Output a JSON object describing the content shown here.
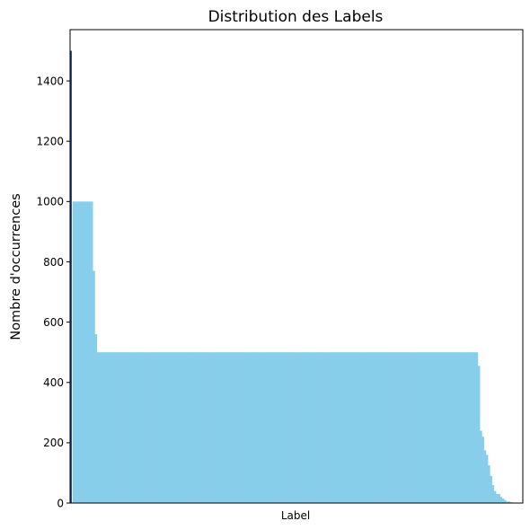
{
  "chart_data": {
    "type": "bar",
    "title": "Distribution des Labels",
    "xlabel": "Label",
    "ylabel": "Nombre d'occurrences",
    "ylim": [
      0,
      1570
    ],
    "yticks": [
      0,
      200,
      400,
      600,
      800,
      1000,
      1200,
      1400
    ],
    "grid": false,
    "legend": "none",
    "bar_color": "#87CEEB",
    "category_count": 217,
    "values": [
      1500,
      1000,
      1000,
      1000,
      1000,
      1000,
      1000,
      1000,
      1000,
      1000,
      1000,
      770,
      560,
      500,
      500,
      500,
      500,
      500,
      500,
      500,
      500,
      500,
      500,
      500,
      500,
      500,
      500,
      500,
      500,
      500,
      500,
      500,
      500,
      500,
      500,
      500,
      500,
      500,
      500,
      500,
      500,
      500,
      500,
      500,
      500,
      500,
      500,
      500,
      500,
      500,
      500,
      500,
      500,
      500,
      500,
      500,
      500,
      500,
      500,
      500,
      500,
      500,
      500,
      500,
      500,
      500,
      500,
      500,
      500,
      500,
      500,
      500,
      500,
      500,
      500,
      500,
      500,
      500,
      500,
      500,
      500,
      500,
      500,
      500,
      500,
      500,
      500,
      500,
      500,
      500,
      500,
      500,
      500,
      500,
      500,
      500,
      500,
      500,
      500,
      500,
      500,
      500,
      500,
      500,
      500,
      500,
      500,
      500,
      500,
      500,
      500,
      500,
      500,
      500,
      500,
      500,
      500,
      500,
      500,
      500,
      500,
      500,
      500,
      500,
      500,
      500,
      500,
      500,
      500,
      500,
      500,
      500,
      500,
      500,
      500,
      500,
      500,
      500,
      500,
      500,
      500,
      500,
      500,
      500,
      500,
      500,
      500,
      500,
      500,
      500,
      500,
      500,
      500,
      500,
      500,
      500,
      500,
      500,
      500,
      500,
      500,
      500,
      500,
      500,
      500,
      500,
      500,
      500,
      500,
      500,
      500,
      500,
      500,
      500,
      500,
      500,
      500,
      500,
      500,
      500,
      500,
      500,
      500,
      500,
      500,
      500,
      500,
      500,
      500,
      500,
      500,
      500,
      500,
      500,
      500,
      500,
      500,
      500,
      500,
      500,
      500,
      500,
      455,
      240,
      220,
      175,
      160,
      125,
      90,
      60,
      40,
      30,
      30,
      20,
      15,
      10,
      5,
      5,
      3
    ]
  }
}
